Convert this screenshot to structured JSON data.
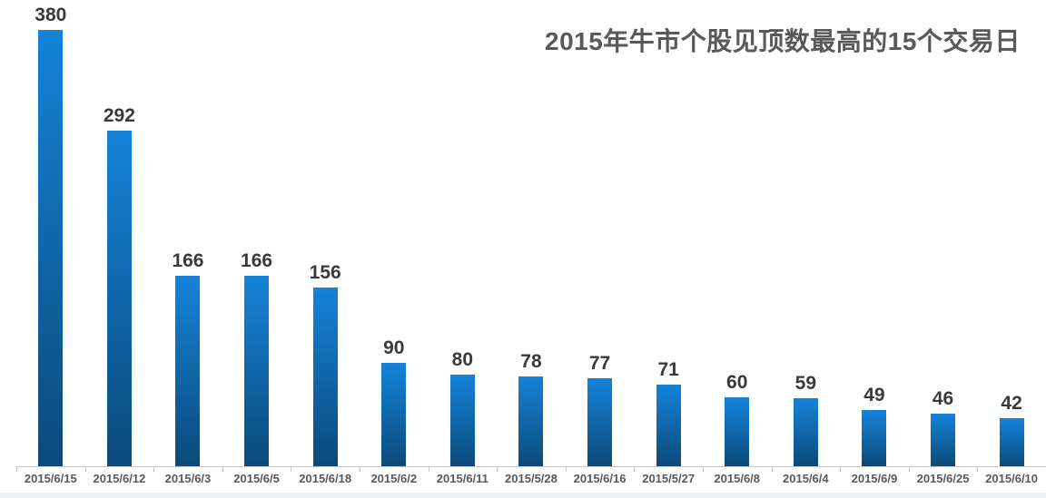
{
  "chart_data": {
    "type": "bar",
    "title": "2015年牛市个股见顶数最高的15个交易日",
    "categories": [
      "2015/6/15",
      "2015/6/12",
      "2015/6/3",
      "2015/6/5",
      "2015/6/18",
      "2015/6/2",
      "2015/6/11",
      "2015/5/28",
      "2015/6/16",
      "2015/5/27",
      "2015/6/8",
      "2015/6/4",
      "2015/6/9",
      "2015/6/25",
      "2015/6/10"
    ],
    "values": [
      380,
      292,
      166,
      166,
      156,
      90,
      80,
      78,
      77,
      71,
      60,
      59,
      49,
      46,
      42
    ],
    "xlabel": "",
    "ylabel": "",
    "ylim": [
      0,
      380
    ],
    "grid": false,
    "legend_position": "none",
    "data_labels_shown": true,
    "colors": {
      "bar_gradient_top": "#1583D9",
      "bar_gradient_bottom": "#0B4A7A",
      "title_text": "#595959",
      "value_label_text": "#3A3A3A",
      "axis_label_text": "#595959",
      "axis_line": "#C9C9C9",
      "bottom_strip": "#ECF0F4",
      "background": "#FFFFFF"
    }
  }
}
